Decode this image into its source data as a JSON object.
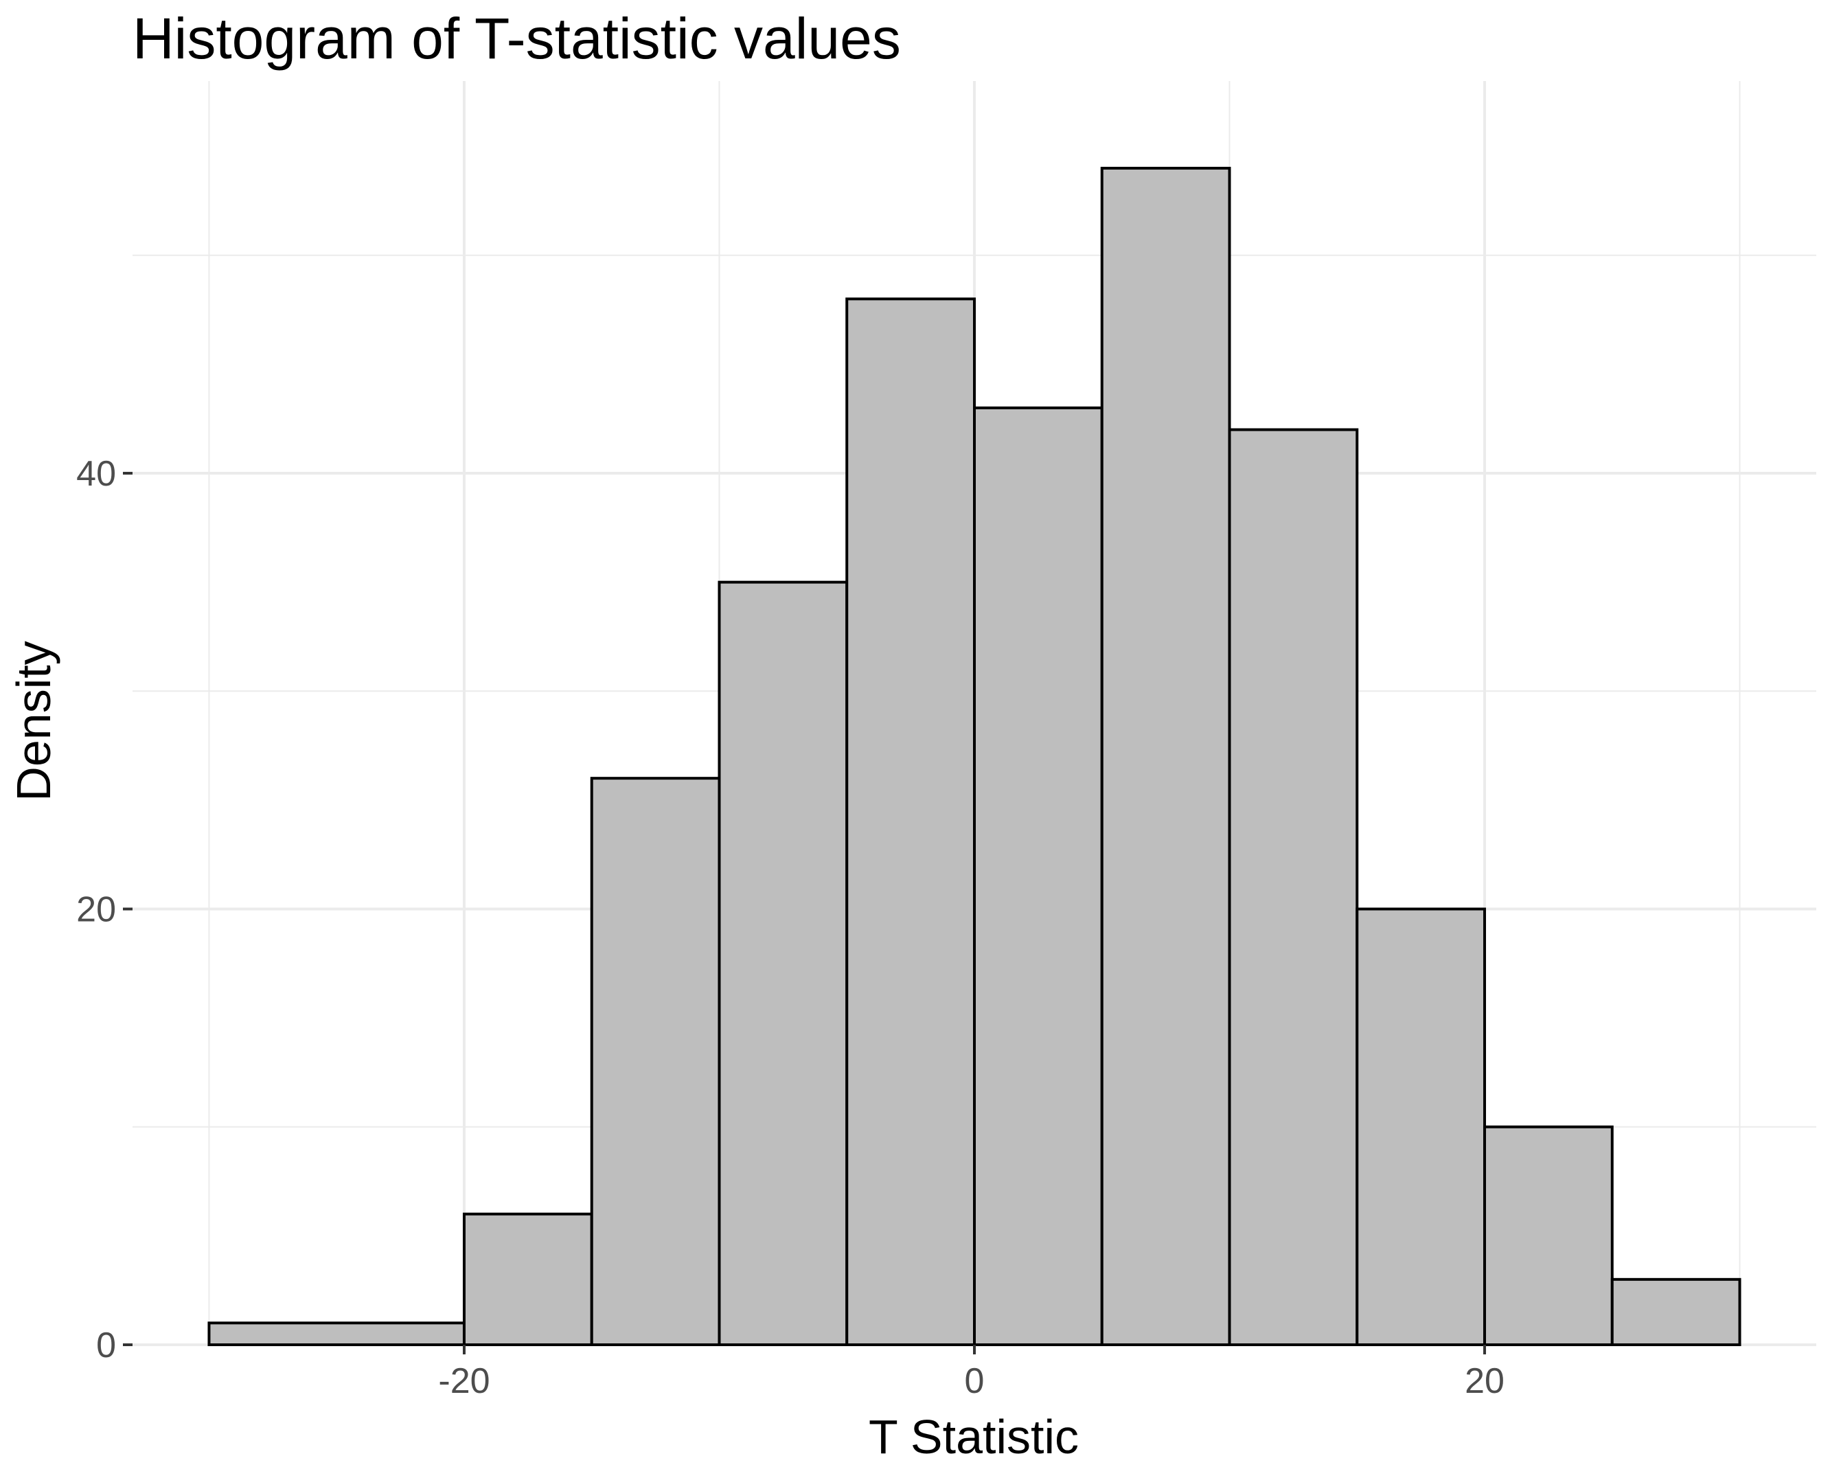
{
  "chart_data": {
    "type": "bar",
    "subtype": "histogram",
    "title": "Histogram of T-statistic values",
    "xlabel": "T Statistic",
    "ylabel": "Density",
    "xlim": [
      -33,
      33
    ],
    "ylim": [
      0,
      58
    ],
    "x_ticks": [
      -20,
      0,
      20
    ],
    "x_tick_labels": [
      "-20",
      "0",
      "20"
    ],
    "x_minor_ticks": [
      -30,
      -10,
      10,
      30
    ],
    "y_ticks": [
      0,
      20,
      40
    ],
    "y_tick_labels": [
      "0",
      "20",
      "40"
    ],
    "y_minor_ticks": [
      10,
      30,
      50
    ],
    "bins": [
      {
        "x0": -30,
        "x1": -20,
        "value": 1
      },
      {
        "x0": -20,
        "x1": -15,
        "value": 6
      },
      {
        "x0": -15,
        "x1": -10,
        "value": 26
      },
      {
        "x0": -10,
        "x1": -5,
        "value": 35
      },
      {
        "x0": -5,
        "x1": 0,
        "value": 48
      },
      {
        "x0": 0,
        "x1": 5,
        "value": 43
      },
      {
        "x0": 5,
        "x1": 10,
        "value": 54
      },
      {
        "x0": 10,
        "x1": 15,
        "value": 42
      },
      {
        "x0": 15,
        "x1": 20,
        "value": 20
      },
      {
        "x0": 20,
        "x1": 25,
        "value": 10
      },
      {
        "x0": 25,
        "x1": 30,
        "value": 3
      }
    ],
    "bar_fill": "#bebebe",
    "bar_outline": "#000000",
    "grid": true,
    "legend": "none"
  }
}
